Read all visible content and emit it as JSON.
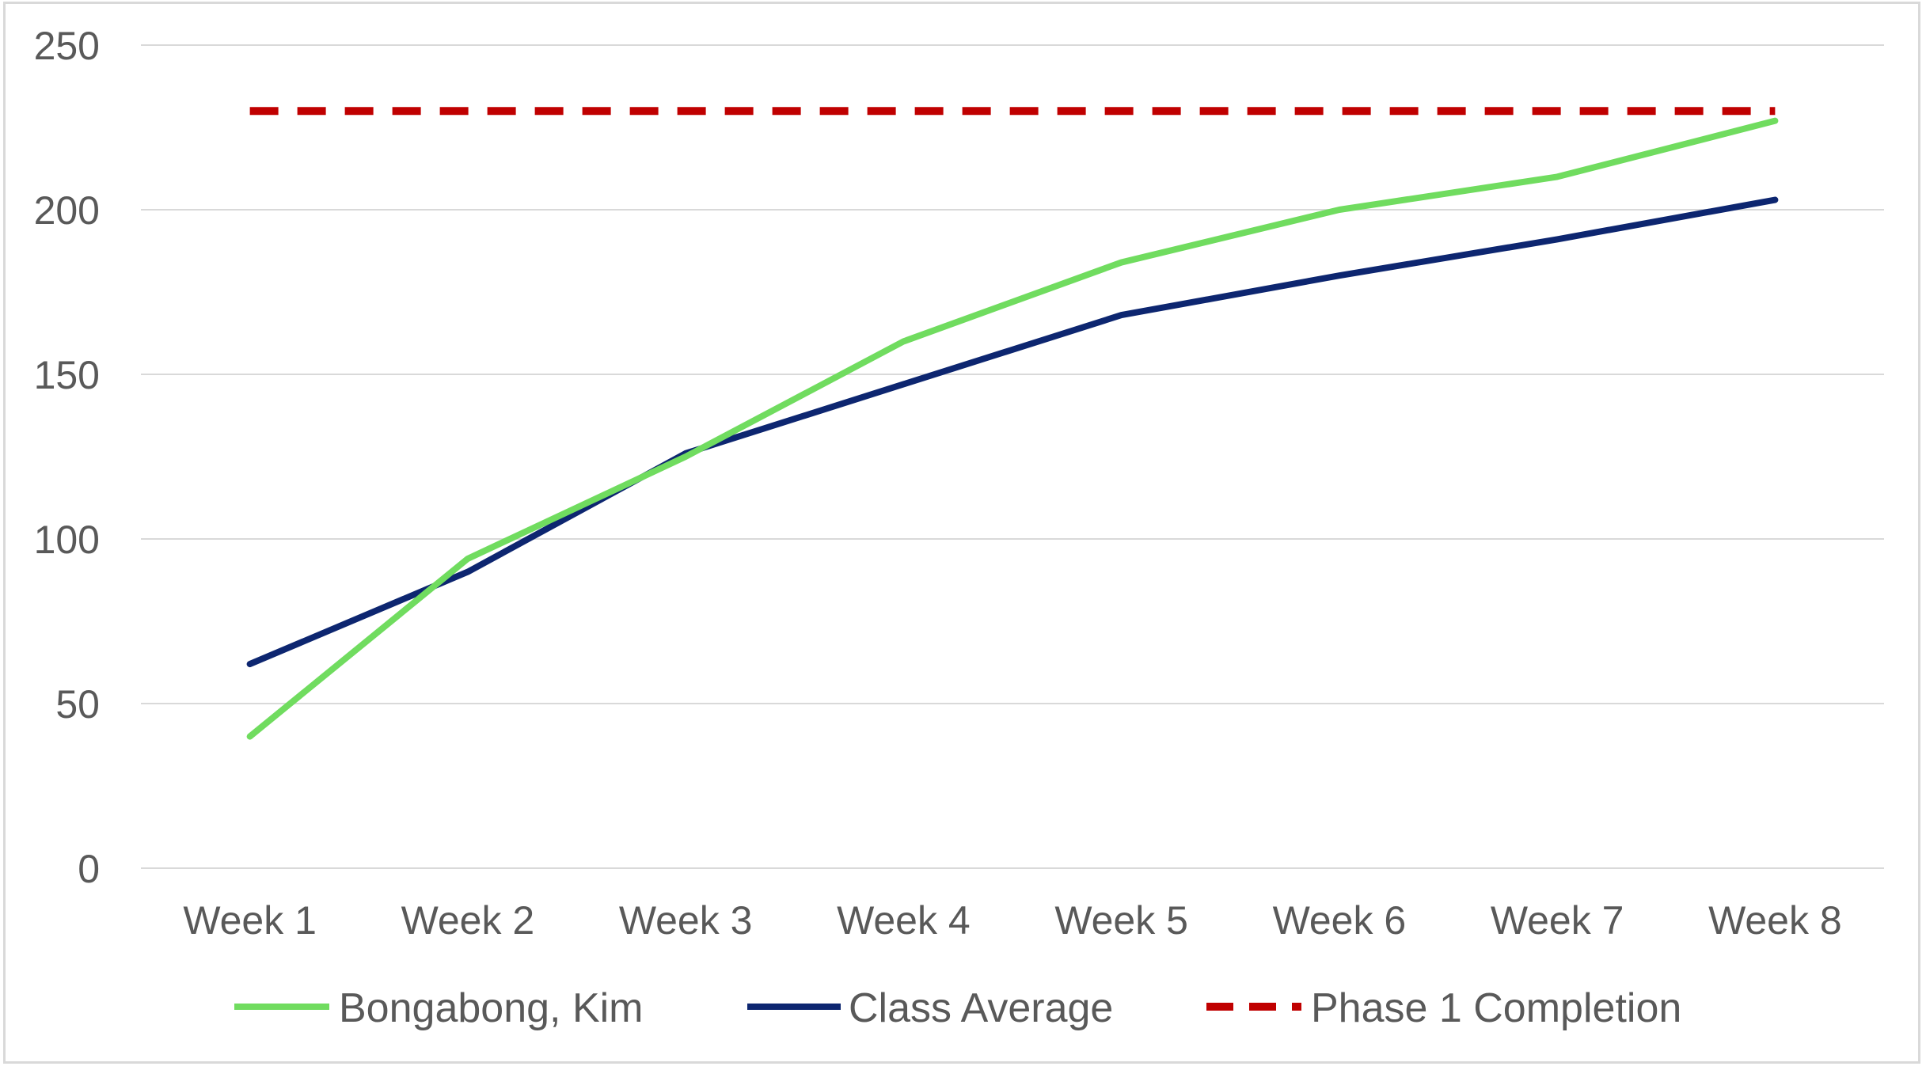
{
  "chart_data": {
    "type": "line",
    "categories": [
      "Week 1",
      "Week 2",
      "Week 3",
      "Week 4",
      "Week 5",
      "Week 6",
      "Week 7",
      "Week 8"
    ],
    "series": [
      {
        "name": "Bongabong, Kim",
        "values": [
          40,
          94,
          125,
          160,
          184,
          200,
          210,
          227
        ],
        "color": "#70dc5f",
        "style": "solid"
      },
      {
        "name": "Class Average",
        "values": [
          62,
          90,
          126,
          147,
          168,
          180,
          191,
          203
        ],
        "color": "#0d2670",
        "style": "solid"
      },
      {
        "name": "Phase 1 Completion",
        "values": [
          230,
          230,
          230,
          230,
          230,
          230,
          230,
          230
        ],
        "color": "#c00000",
        "style": "dashed"
      }
    ],
    "yticks": [
      0,
      50,
      100,
      150,
      200,
      250
    ],
    "ylim": [
      0,
      250
    ],
    "grid": true,
    "legend_position": "bottom"
  }
}
